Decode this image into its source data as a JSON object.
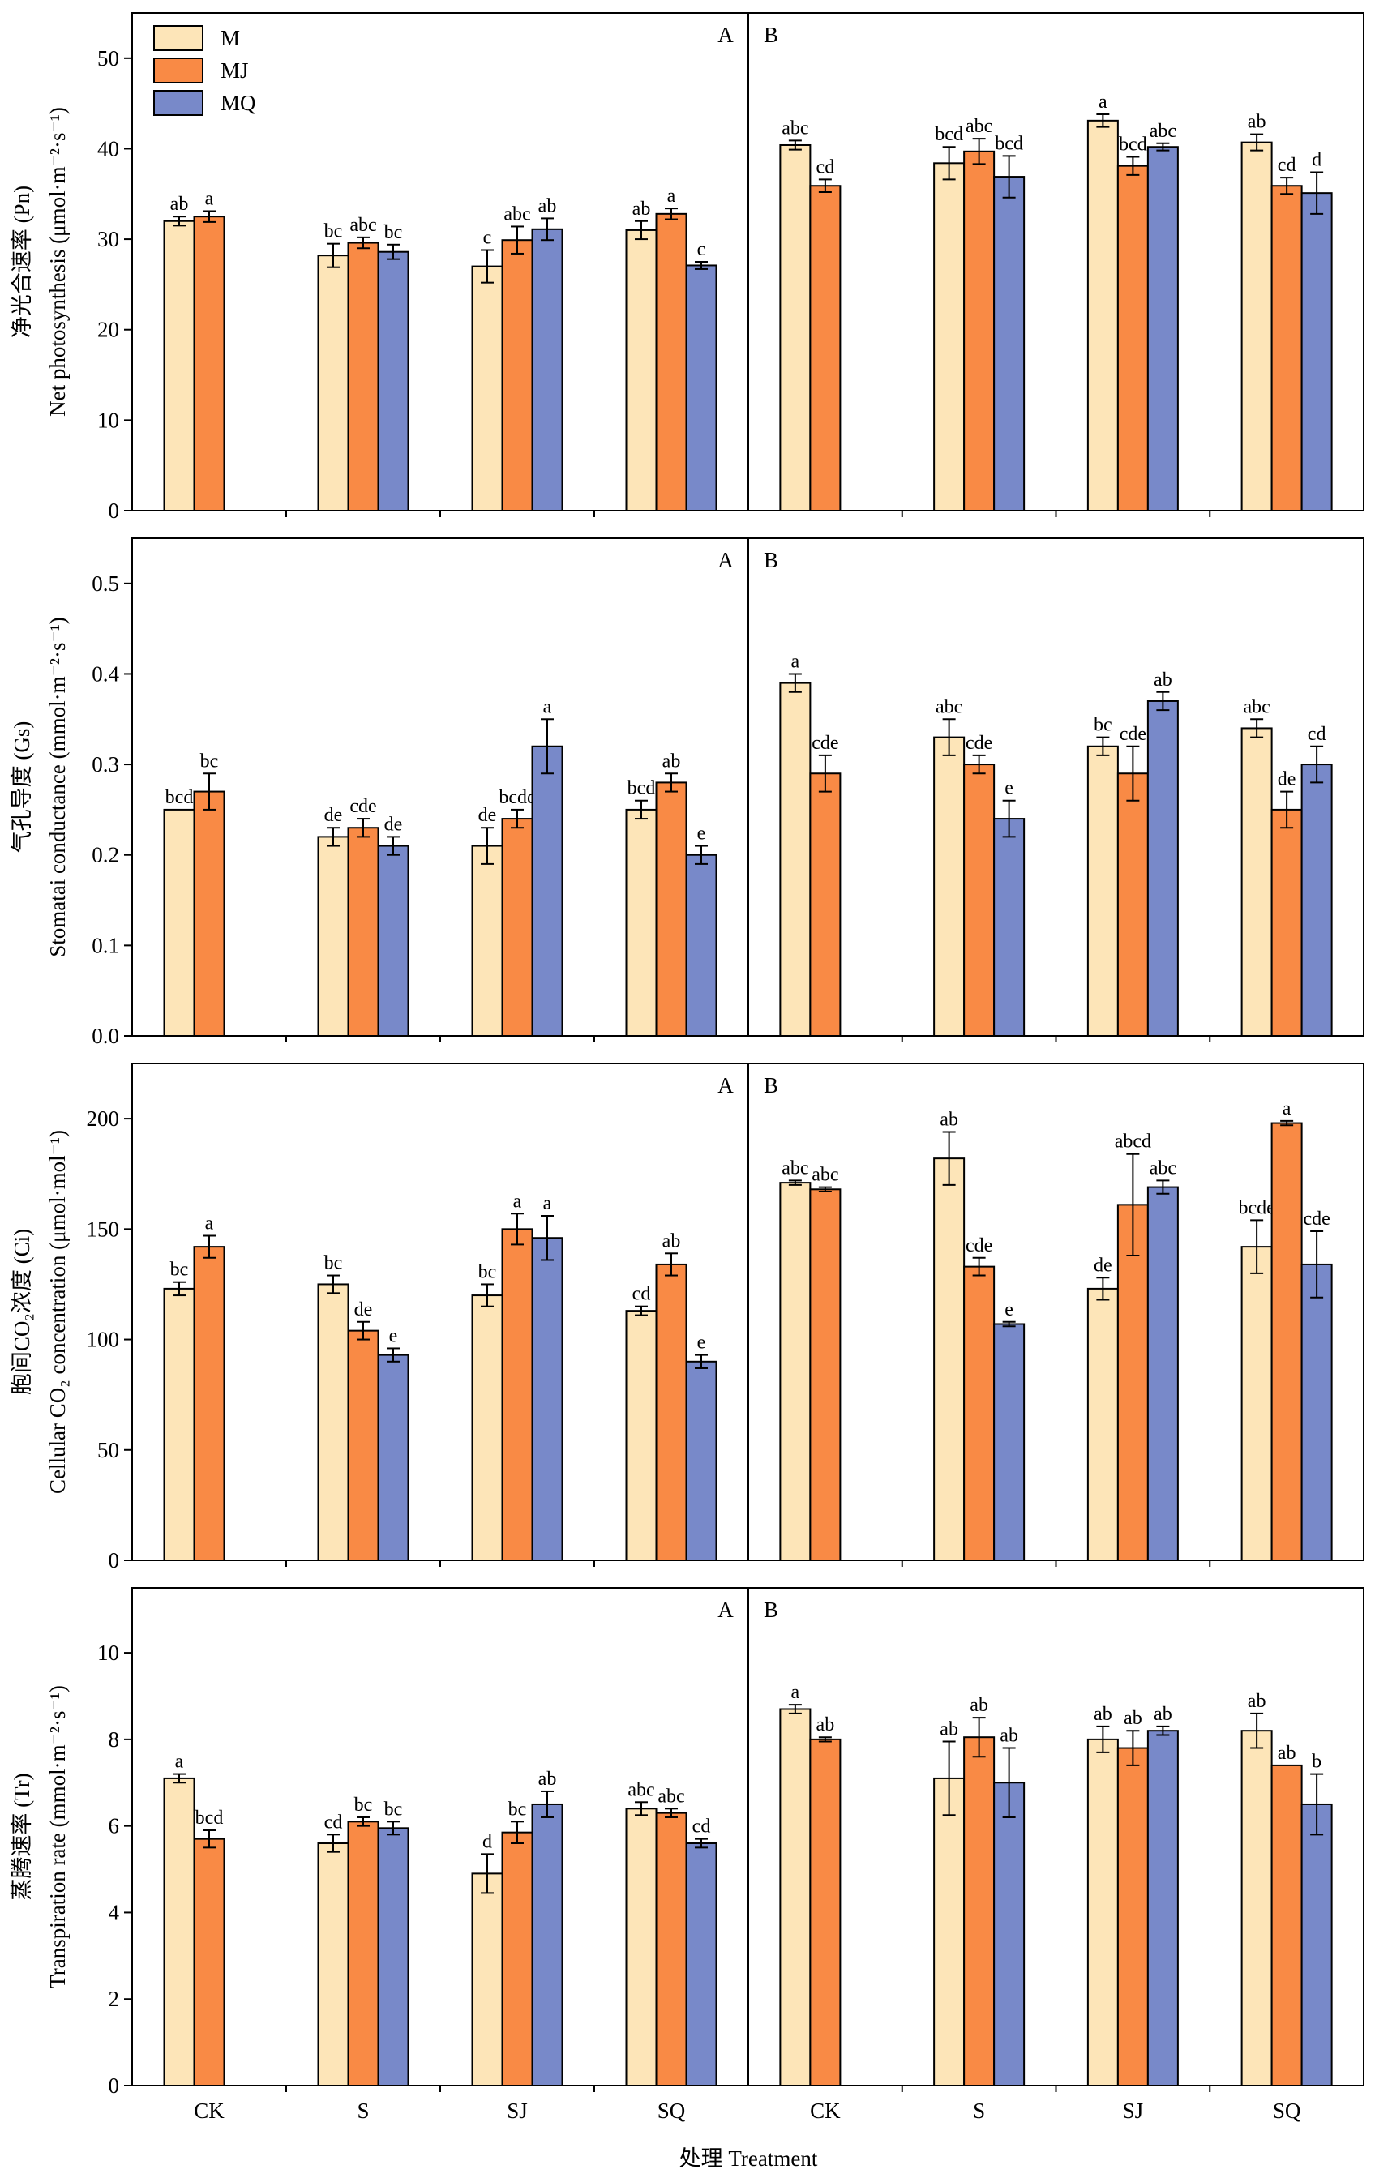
{
  "colors": {
    "M": "#fde5b8",
    "MJ": "#f98a45",
    "MQ": "#7889c9",
    "stroke": "#000000"
  },
  "x_axis_label": "处理 Treatment",
  "legend": [
    "M",
    "MJ",
    "MQ"
  ],
  "chart_data": [
    {
      "type": "bar",
      "ylabel_cn": "净光合速率 (Pn)",
      "ylabel_en": "Net photosynthesis (μmol·m⁻²·s⁻¹)",
      "ylim": [
        0,
        55
      ],
      "yticks": [
        0,
        10,
        20,
        30,
        40,
        50
      ],
      "groups": [
        "CK",
        "S",
        "SJ",
        "SQ"
      ],
      "series_names": [
        "M",
        "MJ",
        "MQ"
      ],
      "panels": [
        {
          "label": "A",
          "values": [
            [
              32.0,
              32.5,
              null
            ],
            [
              28.2,
              29.6,
              28.6
            ],
            [
              27.0,
              29.9,
              31.1
            ],
            [
              31.0,
              32.8,
              27.1
            ]
          ],
          "errors": [
            [
              0.5,
              0.6,
              0
            ],
            [
              1.3,
              0.6,
              0.8
            ],
            [
              1.8,
              1.5,
              1.2
            ],
            [
              1.0,
              0.6,
              0.4
            ]
          ],
          "labels": [
            [
              "ab",
              "a",
              ""
            ],
            [
              "bc",
              "abc",
              "bc"
            ],
            [
              "c",
              "abc",
              "ab"
            ],
            [
              "ab",
              "a",
              "c"
            ]
          ]
        },
        {
          "label": "B",
          "values": [
            [
              40.4,
              35.9,
              null
            ],
            [
              38.4,
              39.7,
              36.9
            ],
            [
              43.1,
              38.1,
              40.2
            ],
            [
              40.7,
              35.9,
              35.1
            ]
          ],
          "errors": [
            [
              0.5,
              0.7,
              0
            ],
            [
              1.8,
              1.4,
              2.3
            ],
            [
              0.7,
              1.0,
              0.4
            ],
            [
              0.9,
              0.9,
              2.3
            ]
          ],
          "labels": [
            [
              "abc",
              "cd",
              ""
            ],
            [
              "bcd",
              "abc",
              "bcd"
            ],
            [
              "a",
              "bcd",
              "abc"
            ],
            [
              "ab",
              "cd",
              "d"
            ]
          ]
        }
      ]
    },
    {
      "type": "bar",
      "ylabel_cn": "气孔导度 (Gs)",
      "ylabel_en": "Stomatai conductance (mmol·m⁻²·s⁻¹)",
      "ylim": [
        0,
        0.55
      ],
      "yticks": [
        0,
        0.1,
        0.2,
        0.3,
        0.4,
        0.5
      ],
      "groups": [
        "CK",
        "S",
        "SJ",
        "SQ"
      ],
      "series_names": [
        "M",
        "MJ",
        "MQ"
      ],
      "panels": [
        {
          "label": "A",
          "values": [
            [
              0.25,
              0.27,
              null
            ],
            [
              0.22,
              0.23,
              0.21
            ],
            [
              0.21,
              0.24,
              0.32
            ],
            [
              0.25,
              0.28,
              0.2
            ]
          ],
          "errors": [
            [
              0,
              0.02,
              0
            ],
            [
              0.01,
              0.01,
              0.01
            ],
            [
              0.02,
              0.01,
              0.03
            ],
            [
              0.01,
              0.01,
              0.01
            ]
          ],
          "labels": [
            [
              "bcd",
              "bc",
              ""
            ],
            [
              "de",
              "cde",
              "de"
            ],
            [
              "de",
              "bcde",
              "a"
            ],
            [
              "bcd",
              "ab",
              "e"
            ]
          ]
        },
        {
          "label": "B",
          "values": [
            [
              0.39,
              0.29,
              null
            ],
            [
              0.33,
              0.3,
              0.24
            ],
            [
              0.32,
              0.29,
              0.37
            ],
            [
              0.34,
              0.25,
              0.3
            ]
          ],
          "errors": [
            [
              0.01,
              0.02,
              0
            ],
            [
              0.02,
              0.01,
              0.02
            ],
            [
              0.01,
              0.03,
              0.01
            ],
            [
              0.01,
              0.02,
              0.02
            ]
          ],
          "labels": [
            [
              "a",
              "cde",
              ""
            ],
            [
              "abc",
              "cde",
              "e"
            ],
            [
              "bc",
              "cde",
              "ab"
            ],
            [
              "abc",
              "de",
              "cd"
            ]
          ]
        }
      ]
    },
    {
      "type": "bar",
      "ylabel_cn": "胞间CO₂浓度 (Ci)",
      "ylabel_en": "Cellular CO₂ concentration (μmol·mol⁻¹)",
      "ylim": [
        0,
        225
      ],
      "yticks": [
        0,
        50,
        100,
        150,
        200
      ],
      "groups": [
        "CK",
        "S",
        "SJ",
        "SQ"
      ],
      "series_names": [
        "M",
        "MJ",
        "MQ"
      ],
      "panels": [
        {
          "label": "A",
          "values": [
            [
              123,
              142,
              null
            ],
            [
              125,
              104,
              93
            ],
            [
              120,
              150,
              146
            ],
            [
              113,
              134,
              90
            ]
          ],
          "errors": [
            [
              3,
              5,
              0
            ],
            [
              4,
              4,
              3
            ],
            [
              5,
              7,
              10
            ],
            [
              2,
              5,
              3
            ]
          ],
          "labels": [
            [
              "bc",
              "a",
              ""
            ],
            [
              "bc",
              "de",
              "e"
            ],
            [
              "bc",
              "a",
              "a"
            ],
            [
              "cd",
              "ab",
              "e"
            ]
          ]
        },
        {
          "label": "B",
          "values": [
            [
              171,
              168,
              null
            ],
            [
              182,
              133,
              107
            ],
            [
              123,
              161,
              169
            ],
            [
              142,
              198,
              134
            ]
          ],
          "errors": [
            [
              1,
              1,
              0
            ],
            [
              12,
              4,
              1
            ],
            [
              5,
              23,
              3
            ],
            [
              12,
              1,
              15
            ]
          ],
          "labels": [
            [
              "abc",
              "abc",
              ""
            ],
            [
              "ab",
              "cde",
              "e"
            ],
            [
              "de",
              "abcd",
              "abc"
            ],
            [
              "bcde",
              "a",
              "cde"
            ]
          ]
        }
      ]
    },
    {
      "type": "bar",
      "ylabel_cn": "蒸腾速率 (Tr)",
      "ylabel_en": "Transpiration rate (mmol·m⁻²·s⁻¹)",
      "ylim": [
        0,
        11.5
      ],
      "yticks": [
        0,
        2,
        4,
        6,
        8,
        10
      ],
      "groups": [
        "CK",
        "S",
        "SJ",
        "SQ"
      ],
      "series_names": [
        "M",
        "MJ",
        "MQ"
      ],
      "panels": [
        {
          "label": "A",
          "values": [
            [
              7.1,
              5.7,
              null
            ],
            [
              5.6,
              6.1,
              5.95
            ],
            [
              4.9,
              5.85,
              6.5
            ],
            [
              6.4,
              6.3,
              5.6
            ]
          ],
          "errors": [
            [
              0.1,
              0.2,
              0
            ],
            [
              0.2,
              0.1,
              0.15
            ],
            [
              0.45,
              0.25,
              0.3
            ],
            [
              0.15,
              0.1,
              0.1
            ]
          ],
          "labels": [
            [
              "a",
              "bcd",
              ""
            ],
            [
              "cd",
              "bc",
              "bc"
            ],
            [
              "d",
              "bc",
              "ab"
            ],
            [
              "abc",
              "abc",
              "cd"
            ]
          ]
        },
        {
          "label": "B",
          "values": [
            [
              8.7,
              8.0,
              null
            ],
            [
              7.1,
              8.05,
              7.0
            ],
            [
              8.0,
              7.8,
              8.2
            ],
            [
              8.2,
              7.4,
              6.5
            ]
          ],
          "errors": [
            [
              0.1,
              0.05,
              0
            ],
            [
              0.85,
              0.45,
              0.8
            ],
            [
              0.3,
              0.4,
              0.1
            ],
            [
              0.4,
              0,
              0.7
            ]
          ],
          "labels": [
            [
              "a",
              "ab",
              ""
            ],
            [
              "ab",
              "ab",
              "ab"
            ],
            [
              "ab",
              "ab",
              "ab"
            ],
            [
              "ab",
              "ab",
              "b"
            ]
          ]
        }
      ]
    }
  ]
}
